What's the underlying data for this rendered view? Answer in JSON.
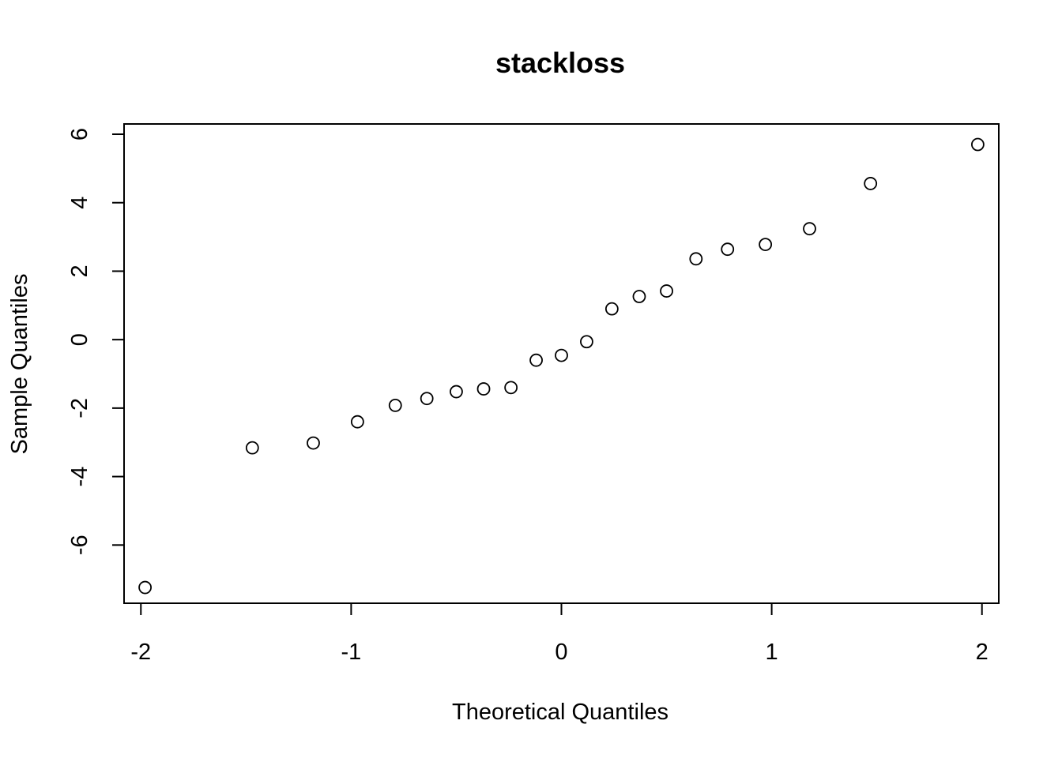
{
  "chart_data": {
    "type": "scatter",
    "title": "stackloss",
    "xlabel": "Theoretical Quantiles",
    "ylabel": "Sample Quantiles",
    "xlim": [
      -2.08,
      2.08
    ],
    "ylim": [
      -7.7,
      6.3
    ],
    "x_ticks": [
      -2,
      -1,
      0,
      1,
      2
    ],
    "y_ticks": [
      -6,
      -4,
      -2,
      0,
      2,
      4,
      6
    ],
    "grid": false,
    "legend": "none",
    "points": [
      {
        "x": -1.98,
        "y": -7.24
      },
      {
        "x": -1.47,
        "y": -3.16
      },
      {
        "x": -1.18,
        "y": -3.02
      },
      {
        "x": -0.97,
        "y": -2.4
      },
      {
        "x": -0.79,
        "y": -1.92
      },
      {
        "x": -0.64,
        "y": -1.72
      },
      {
        "x": -0.5,
        "y": -1.52
      },
      {
        "x": -0.37,
        "y": -1.44
      },
      {
        "x": -0.24,
        "y": -1.4
      },
      {
        "x": -0.12,
        "y": -0.6
      },
      {
        "x": 0.0,
        "y": -0.46
      },
      {
        "x": 0.12,
        "y": -0.06
      },
      {
        "x": 0.24,
        "y": 0.9
      },
      {
        "x": 0.37,
        "y": 1.26
      },
      {
        "x": 0.5,
        "y": 1.42
      },
      {
        "x": 0.64,
        "y": 2.36
      },
      {
        "x": 0.79,
        "y": 2.64
      },
      {
        "x": 0.97,
        "y": 2.78
      },
      {
        "x": 1.18,
        "y": 3.24
      },
      {
        "x": 1.47,
        "y": 4.56
      },
      {
        "x": 1.98,
        "y": 5.7
      }
    ]
  }
}
